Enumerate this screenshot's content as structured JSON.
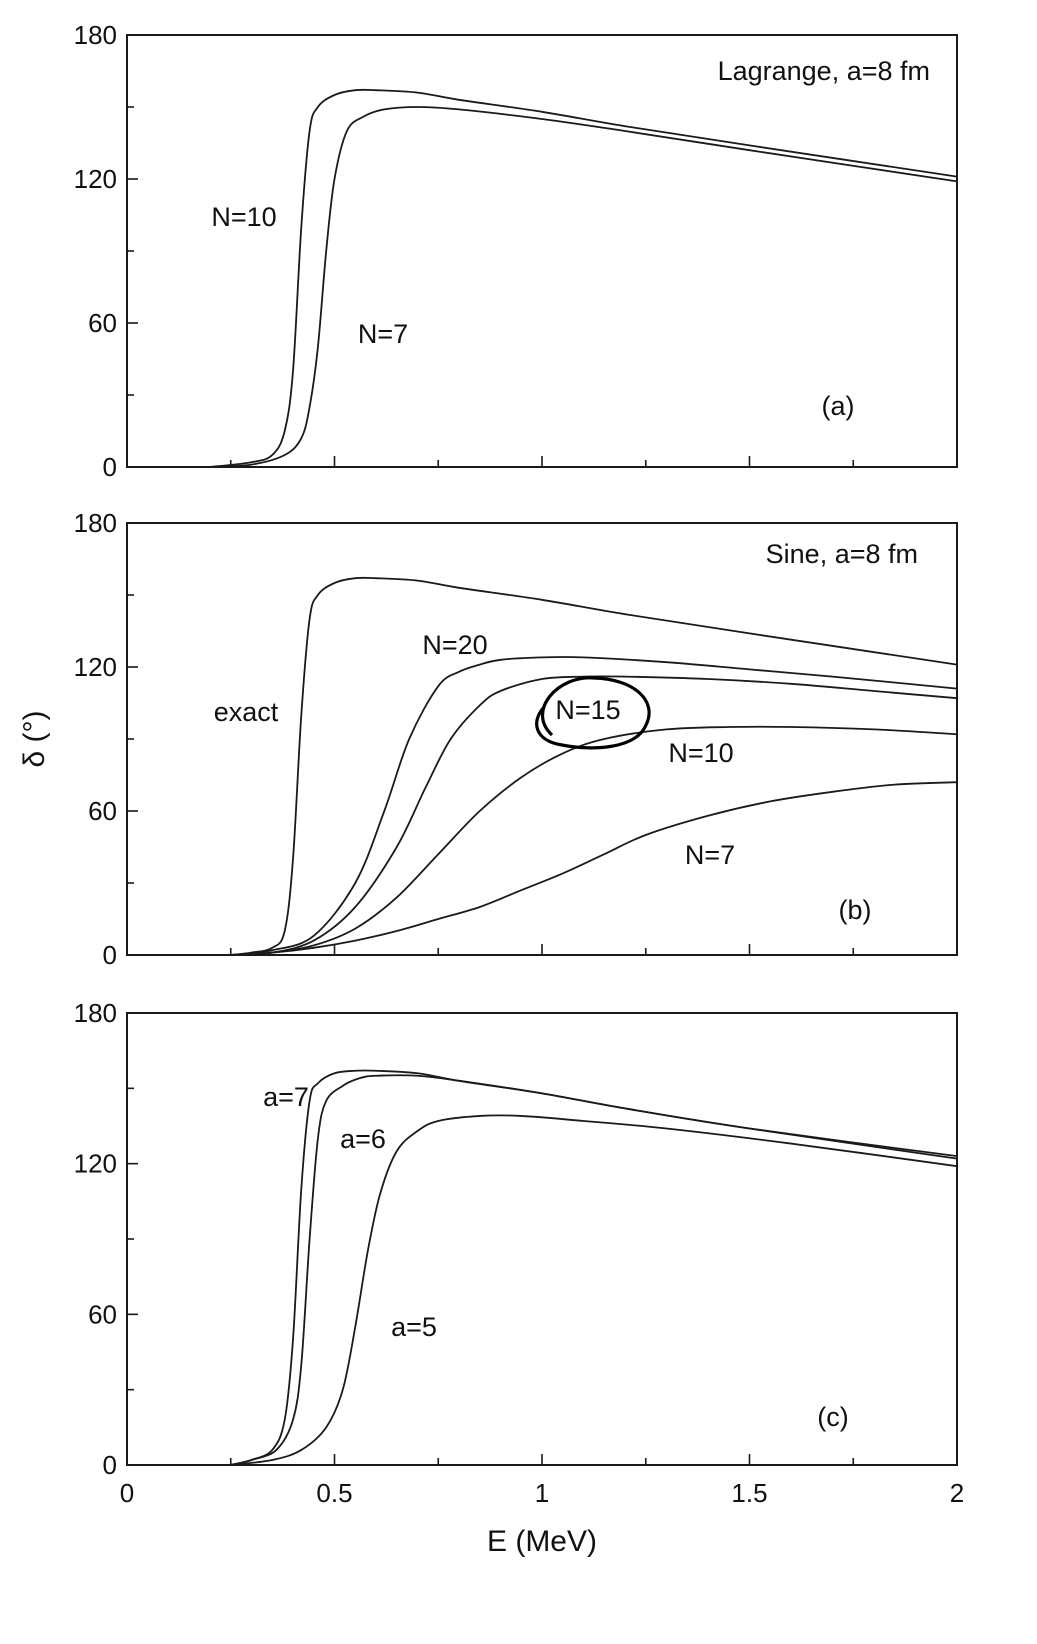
{
  "chart_data": [
    {
      "type": "line",
      "panel_label": "(a)",
      "annotation": "Lagrange, a=8 fm",
      "xlim": [
        0,
        2
      ],
      "ylim": [
        0,
        180
      ],
      "yticks": [
        "0",
        "60",
        "120",
        "180"
      ],
      "grid": false,
      "series": [
        {
          "name": "N=10",
          "x": [
            0.2,
            0.3,
            0.35,
            0.38,
            0.4,
            0.42,
            0.44,
            0.46,
            0.5,
            0.55,
            0.6,
            0.7,
            0.8,
            1.0,
            1.2,
            1.5,
            2.0
          ],
          "y": [
            0,
            2,
            5,
            15,
            40,
            100,
            140,
            150,
            155,
            157,
            157,
            156,
            153,
            148,
            142,
            134,
            121
          ]
        },
        {
          "name": "N=7",
          "x": [
            0.2,
            0.3,
            0.38,
            0.42,
            0.44,
            0.46,
            0.48,
            0.5,
            0.53,
            0.57,
            0.62,
            0.7,
            0.8,
            1.0,
            1.2,
            1.5,
            2.0
          ],
          "y": [
            0,
            1,
            5,
            12,
            25,
            50,
            90,
            120,
            140,
            146,
            149,
            150,
            149,
            145,
            140,
            132,
            119
          ]
        }
      ]
    },
    {
      "type": "line",
      "panel_label": "(b)",
      "annotation": "Sine, a=8 fm",
      "xlim": [
        0,
        2
      ],
      "ylim": [
        0,
        180
      ],
      "yticks": [
        "0",
        "60",
        "120",
        "180"
      ],
      "ylabel": "δ (°)",
      "grid": false,
      "highlight": "N=15",
      "series": [
        {
          "name": "exact",
          "x": [
            0.25,
            0.3,
            0.35,
            0.38,
            0.4,
            0.42,
            0.44,
            0.46,
            0.5,
            0.55,
            0.6,
            0.7,
            0.8,
            1.0,
            1.2,
            1.5,
            2.0
          ],
          "y": [
            0,
            1,
            3,
            10,
            40,
            100,
            140,
            150,
            155,
            157,
            157,
            156,
            153,
            148,
            142,
            134,
            121
          ]
        },
        {
          "name": "N=20",
          "x": [
            0.25,
            0.35,
            0.45,
            0.55,
            0.62,
            0.68,
            0.75,
            0.8,
            0.85,
            0.9,
            1.0,
            1.1,
            1.3,
            1.5,
            1.7,
            2.0
          ],
          "y": [
            0,
            2,
            8,
            30,
            60,
            90,
            112,
            118,
            121,
            123,
            124,
            124,
            122,
            119,
            116,
            111
          ]
        },
        {
          "name": "N=15",
          "x": [
            0.25,
            0.35,
            0.45,
            0.55,
            0.65,
            0.72,
            0.78,
            0.85,
            0.9,
            1.0,
            1.1,
            1.2,
            1.4,
            1.6,
            1.8,
            2.0
          ],
          "y": [
            0,
            1,
            6,
            20,
            45,
            70,
            90,
            104,
            110,
            115,
            116,
            116,
            115,
            113,
            110,
            107
          ]
        },
        {
          "name": "N=10",
          "x": [
            0.25,
            0.35,
            0.45,
            0.55,
            0.65,
            0.75,
            0.85,
            0.95,
            1.05,
            1.15,
            1.3,
            1.45,
            1.6,
            1.8,
            2.0
          ],
          "y": [
            0,
            1,
            4,
            11,
            24,
            42,
            60,
            74,
            84,
            90,
            94,
            95,
            95,
            94,
            92
          ]
        },
        {
          "name": "N=7",
          "x": [
            0.25,
            0.35,
            0.45,
            0.55,
            0.65,
            0.75,
            0.85,
            0.95,
            1.05,
            1.15,
            1.25,
            1.4,
            1.55,
            1.7,
            1.85,
            2.0
          ],
          "y": [
            0,
            1,
            3,
            6,
            10,
            15,
            20,
            27,
            34,
            42,
            50,
            58,
            64,
            68,
            71,
            72
          ]
        }
      ]
    },
    {
      "type": "line",
      "panel_label": "(c)",
      "xlim": [
        0,
        2
      ],
      "ylim": [
        0,
        180
      ],
      "yticks": [
        "0",
        "60",
        "120",
        "180"
      ],
      "xticks": [
        "0",
        "0.5",
        "1",
        "1.5",
        "2"
      ],
      "xlabel": "E (MeV)",
      "grid": false,
      "series": [
        {
          "name": "a=7",
          "x": [
            0.25,
            0.3,
            0.35,
            0.38,
            0.4,
            0.42,
            0.44,
            0.46,
            0.5,
            0.55,
            0.6,
            0.7,
            0.8,
            1.0,
            1.2,
            1.5,
            2.0
          ],
          "y": [
            0,
            2,
            6,
            18,
            50,
            110,
            145,
            152,
            156,
            157,
            157,
            156,
            153,
            148,
            142,
            134,
            122
          ]
        },
        {
          "name": "a=6",
          "x": [
            0.25,
            0.3,
            0.36,
            0.4,
            0.42,
            0.44,
            0.46,
            0.48,
            0.52,
            0.56,
            0.6,
            0.7,
            0.8,
            1.0,
            1.2,
            1.5,
            2.0
          ],
          "y": [
            0,
            2,
            6,
            18,
            40,
            90,
            130,
            145,
            151,
            154,
            155,
            155,
            153,
            148,
            142,
            134,
            123
          ]
        },
        {
          "name": "a=5",
          "x": [
            0.25,
            0.35,
            0.42,
            0.48,
            0.52,
            0.55,
            0.58,
            0.61,
            0.65,
            0.7,
            0.75,
            0.85,
            0.95,
            1.1,
            1.3,
            1.6,
            2.0
          ],
          "y": [
            0,
            2,
            6,
            15,
            30,
            55,
            85,
            108,
            125,
            133,
            137,
            139,
            139,
            137,
            134,
            128,
            119
          ]
        }
      ]
    }
  ]
}
